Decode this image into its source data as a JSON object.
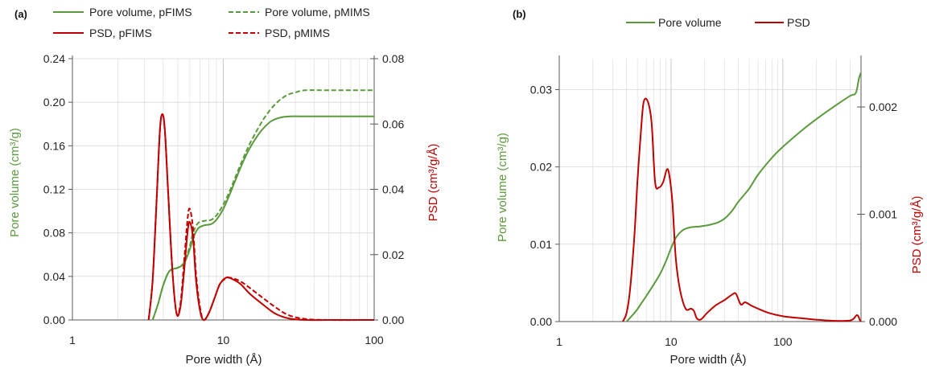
{
  "colors": {
    "green": "#5b9a3c",
    "red": "#c00000",
    "grid": "#d9d9d9",
    "axis": "#595959"
  },
  "chart_data": [
    {
      "panel": "(a)",
      "type": "line",
      "xlabel": "Pore width (Å)",
      "ylabel_left": "Pore volume (cm³/g)",
      "ylabel_right": "PSD (cm³/g/Å)",
      "xscale": "log",
      "xlim": [
        1,
        100
      ],
      "ylim_left": [
        0,
        0.24
      ],
      "ylim_right": [
        0,
        0.08
      ],
      "x_ticks": [
        {
          "value": 1,
          "label": "1"
        },
        {
          "value": 10,
          "label": "10"
        },
        {
          "value": 100,
          "label": "100"
        }
      ],
      "y_ticks_left": [
        "0.00",
        "0.04",
        "0.08",
        "0.12",
        "0.16",
        "0.20",
        "0.24"
      ],
      "y_ticks_right": [
        "0.00",
        "0.02",
        "0.04",
        "0.06",
        "0.08"
      ],
      "grid": true,
      "legend_position": "top",
      "series": [
        {
          "name": "Pore volume, pFIMS",
          "axis": "left",
          "color": "#5b9a3c",
          "dash": "solid",
          "x": [
            3.4,
            3.7,
            4.0,
            4.4,
            5.0,
            5.5,
            6.0,
            6.3,
            6.8,
            7.5,
            8.3,
            9.0,
            10.0,
            11.0,
            12.0,
            13.5,
            15.0,
            17.0,
            19.0,
            21.0,
            24.0,
            28.0,
            35.0,
            50.0,
            100.0
          ],
          "y": [
            0.0,
            0.015,
            0.032,
            0.045,
            0.048,
            0.052,
            0.065,
            0.075,
            0.084,
            0.087,
            0.088,
            0.092,
            0.102,
            0.115,
            0.128,
            0.145,
            0.158,
            0.17,
            0.178,
            0.183,
            0.186,
            0.187,
            0.187,
            0.187,
            0.187
          ]
        },
        {
          "name": "Pore volume, pMIMS",
          "axis": "left",
          "color": "#5b9a3c",
          "dash": "dashed",
          "x": [
            3.4,
            3.7,
            4.0,
            4.4,
            5.0,
            5.5,
            6.0,
            6.3,
            6.8,
            7.5,
            8.3,
            9.0,
            10.0,
            11.0,
            12.0,
            13.5,
            15.0,
            17.0,
            19.0,
            22.0,
            26.0,
            30.0,
            35.0,
            50.0,
            100.0
          ],
          "y": [
            0.0,
            0.015,
            0.032,
            0.045,
            0.048,
            0.053,
            0.068,
            0.08,
            0.089,
            0.091,
            0.092,
            0.096,
            0.106,
            0.118,
            0.131,
            0.148,
            0.162,
            0.176,
            0.187,
            0.198,
            0.206,
            0.209,
            0.211,
            0.211,
            0.211
          ]
        },
        {
          "name": "PSD, pFIMS",
          "axis": "right",
          "color": "#c00000",
          "dash": "solid",
          "x": [
            3.2,
            3.4,
            3.6,
            3.8,
            3.95,
            4.1,
            4.3,
            4.6,
            4.9,
            5.2,
            5.5,
            5.8,
            6.0,
            6.3,
            6.6,
            7.0,
            7.4,
            8.0,
            8.8,
            9.5,
            10.5,
            11.5,
            13.0,
            15.0,
            18.0,
            22.0,
            27.0,
            35.0,
            50.0,
            100.0
          ],
          "y": [
            0.0,
            0.012,
            0.035,
            0.058,
            0.063,
            0.058,
            0.04,
            0.015,
            0.002,
            0.004,
            0.015,
            0.027,
            0.03,
            0.025,
            0.012,
            0.003,
            0.0,
            0.002,
            0.007,
            0.011,
            0.013,
            0.0125,
            0.011,
            0.008,
            0.005,
            0.002,
            0.0005,
            0.0,
            0.0,
            0.0
          ]
        },
        {
          "name": "PSD, pMIMS",
          "axis": "right",
          "color": "#c00000",
          "dash": "dashed",
          "x": [
            3.2,
            3.4,
            3.6,
            3.8,
            3.95,
            4.1,
            4.3,
            4.6,
            4.9,
            5.2,
            5.5,
            5.8,
            6.0,
            6.3,
            6.6,
            7.0,
            7.4,
            8.0,
            8.8,
            9.5,
            10.5,
            11.5,
            13.0,
            15.0,
            18.0,
            22.0,
            27.0,
            35.0,
            50.0,
            100.0
          ],
          "y": [
            0.0,
            0.012,
            0.035,
            0.058,
            0.063,
            0.058,
            0.04,
            0.015,
            0.002,
            0.005,
            0.018,
            0.031,
            0.034,
            0.028,
            0.014,
            0.004,
            0.0,
            0.002,
            0.007,
            0.011,
            0.0128,
            0.0128,
            0.0118,
            0.0098,
            0.007,
            0.004,
            0.0015,
            0.0003,
            0.0,
            0.0
          ]
        }
      ]
    },
    {
      "panel": "(b)",
      "type": "line",
      "xlabel": "Pore width (Å)",
      "ylabel_left": "Pore volume (cm³/g)",
      "ylabel_right": "PSD (cm³/g/Å)",
      "xscale": "log",
      "xlim": [
        1,
        500
      ],
      "ylim_left": [
        0,
        0.034
      ],
      "ylim_right": [
        0,
        0.00245
      ],
      "x_ticks": [
        {
          "value": 1,
          "label": "1"
        },
        {
          "value": 10,
          "label": "10"
        },
        {
          "value": 100,
          "label": "100"
        }
      ],
      "y_ticks_left": [
        "0.00",
        "0.01",
        "0.02",
        "0.03"
      ],
      "y_ticks_right": [
        "0.000",
        "0.001",
        "0.002"
      ],
      "grid": true,
      "legend_position": "top",
      "series": [
        {
          "name": "Pore volume",
          "axis": "left",
          "color": "#5b9a3c",
          "dash": "solid",
          "x": [
            4.0,
            4.5,
            5.0,
            5.5,
            6.0,
            7.0,
            8.0,
            9.0,
            10.0,
            11.0,
            12.0,
            13.0,
            15.0,
            18.0,
            22.0,
            26.0,
            30.0,
            35.0,
            40.0,
            50.0,
            60.0,
            80.0,
            100.0,
            150.0,
            200.0,
            300.0,
            400.0,
            450.0,
            480.0,
            500.0
          ],
          "y": [
            0.0,
            0.0008,
            0.0016,
            0.0025,
            0.0033,
            0.0048,
            0.0062,
            0.0078,
            0.0095,
            0.0108,
            0.0115,
            0.0119,
            0.0122,
            0.0123,
            0.0125,
            0.0128,
            0.0133,
            0.0143,
            0.0155,
            0.0172,
            0.019,
            0.0212,
            0.0226,
            0.0248,
            0.0262,
            0.028,
            0.0292,
            0.0296,
            0.0315,
            0.0322
          ]
        },
        {
          "name": "PSD",
          "axis": "right",
          "color": "#c00000",
          "dash": "solid",
          "x": [
            3.7,
            4.0,
            4.3,
            4.7,
            5.0,
            5.4,
            5.7,
            6.2,
            6.7,
            7.2,
            7.8,
            8.5,
            9.2,
            9.7,
            10.3,
            11.0,
            12.0,
            13.5,
            15.0,
            16.0,
            17.0,
            18.5,
            21.0,
            25.0,
            30.0,
            35.0,
            38.0,
            42.0,
            46.0,
            52.0,
            60.0,
            75.0,
            100.0,
            150.0,
            250.0,
            400.0,
            460.0,
            490.0,
            500.0
          ],
          "y": [
            0.0,
            8e-05,
            0.0003,
            0.0008,
            0.0013,
            0.0018,
            0.00205,
            0.00205,
            0.00185,
            0.0013,
            0.00125,
            0.0013,
            0.00142,
            0.00135,
            0.0011,
            0.0006,
            0.0003,
            0.00012,
            0.00012,
            0.0001,
            3e-05,
            2e-05,
            8e-05,
            0.00015,
            0.0002,
            0.00025,
            0.00026,
            0.00016,
            0.00018,
            0.00015,
            0.00012,
            8e-05,
            5e-05,
            3e-05,
            1e-05,
            1e-05,
            6e-05,
            1e-05,
            0.0
          ]
        }
      ]
    }
  ]
}
